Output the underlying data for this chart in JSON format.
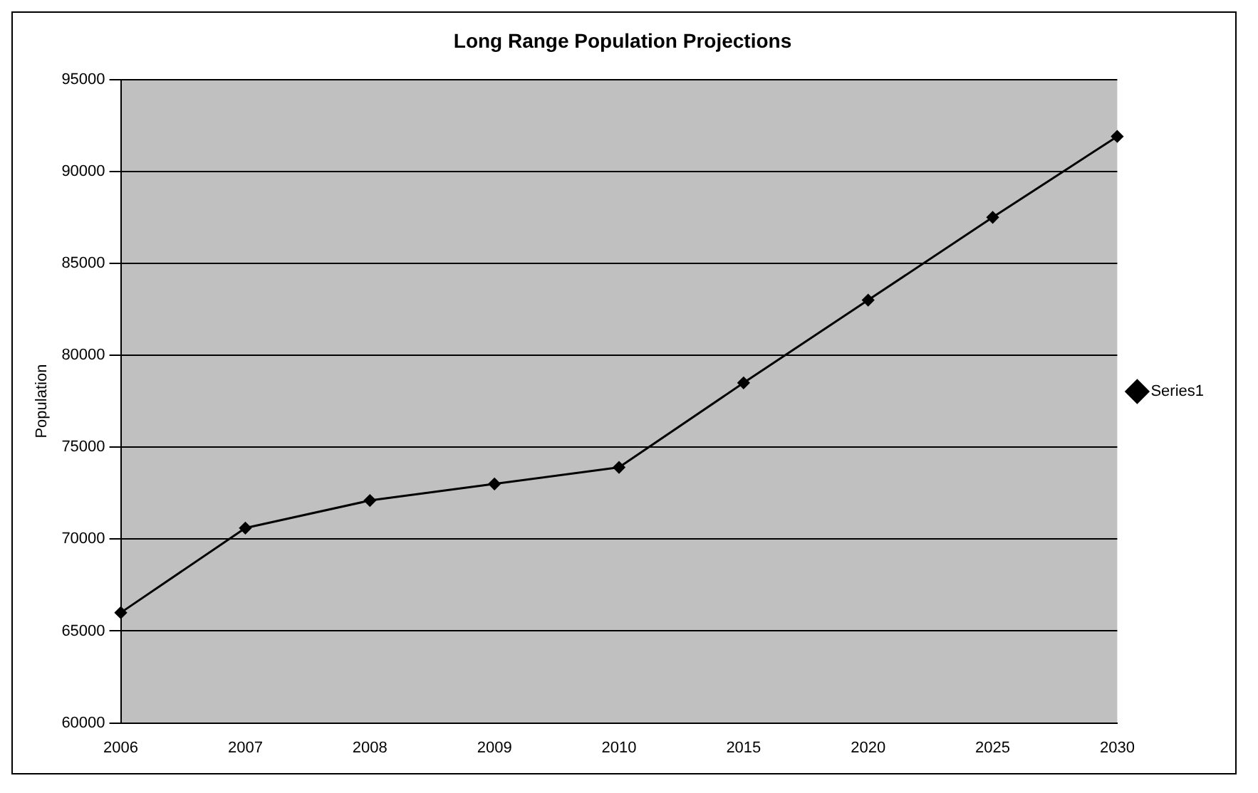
{
  "chart_data": {
    "type": "line",
    "title": "Long Range Population Projections",
    "ylabel": "Population",
    "categories": [
      "2006",
      "2007",
      "2008",
      "2009",
      "2010",
      "2015",
      "2020",
      "2025",
      "2030"
    ],
    "series": [
      {
        "name": "Series1",
        "color": "#000000",
        "values": [
          66000,
          70600,
          72100,
          73000,
          73900,
          78500,
          83000,
          87500,
          91900
        ]
      }
    ],
    "ylim": [
      60000,
      95000
    ],
    "yticks": [
      60000,
      65000,
      70000,
      75000,
      80000,
      85000,
      90000,
      95000
    ],
    "grid": "y",
    "legend": "right",
    "marker": "diamond",
    "line_style": "solid"
  }
}
